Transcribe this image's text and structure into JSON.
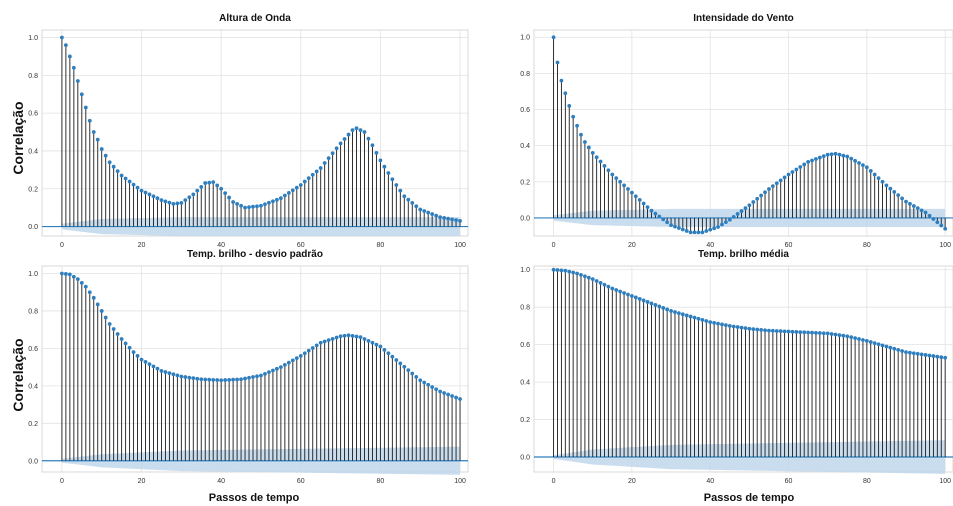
{
  "figure": {
    "ylabel_left": "Correlação",
    "xlabel_bottom": "Passos de tempo"
  },
  "style": {
    "stem_color": "#1a1a1a",
    "marker_color": "#2f7fbf",
    "zero_line_color": "#2f7fbf",
    "band_color": "#bfd7ec",
    "grid_color": "#e2e2e2",
    "frame_color": "#cfcfcf"
  },
  "chart_data": [
    {
      "type": "stem",
      "title": "Altura de Onda",
      "xlim": [
        -5,
        102
      ],
      "ylim": [
        -0.05,
        1.04
      ],
      "xticks": [
        0,
        20,
        40,
        60,
        80,
        100
      ],
      "yticks": [
        0.0,
        0.2,
        0.4,
        0.6,
        0.8,
        1.0
      ],
      "xtick_labels": [
        "0",
        "20",
        "40",
        "60",
        "80",
        "100"
      ],
      "ytick_labels": [
        "0.0",
        "0.2",
        "0.4",
        "0.6",
        "0.8",
        "1.0"
      ],
      "lags": "0-100",
      "anchors": [
        [
          0,
          1.0
        ],
        [
          1,
          0.96
        ],
        [
          2,
          0.9
        ],
        [
          3,
          0.84
        ],
        [
          4,
          0.77
        ],
        [
          5,
          0.7
        ],
        [
          6,
          0.63
        ],
        [
          7,
          0.56
        ],
        [
          8,
          0.5
        ],
        [
          9,
          0.46
        ],
        [
          10,
          0.41
        ],
        [
          12,
          0.34
        ],
        [
          15,
          0.27
        ],
        [
          20,
          0.19
        ],
        [
          25,
          0.14
        ],
        [
          28,
          0.12
        ],
        [
          30,
          0.125
        ],
        [
          33,
          0.17
        ],
        [
          36,
          0.23
        ],
        [
          38,
          0.235
        ],
        [
          40,
          0.2
        ],
        [
          43,
          0.13
        ],
        [
          46,
          0.1
        ],
        [
          50,
          0.11
        ],
        [
          55,
          0.15
        ],
        [
          60,
          0.22
        ],
        [
          65,
          0.31
        ],
        [
          70,
          0.44
        ],
        [
          73,
          0.51
        ],
        [
          74,
          0.52
        ],
        [
          76,
          0.5
        ],
        [
          78,
          0.43
        ],
        [
          80,
          0.35
        ],
        [
          83,
          0.25
        ],
        [
          86,
          0.16
        ],
        [
          90,
          0.09
        ],
        [
          95,
          0.05
        ],
        [
          100,
          0.03
        ]
      ],
      "confidence_band_upper_at": [
        [
          0,
          0.015
        ],
        [
          10,
          0.04
        ],
        [
          30,
          0.05
        ],
        [
          100,
          0.05
        ]
      ]
    },
    {
      "type": "stem",
      "title": "Intensidade do Vento",
      "xlim": [
        -5,
        102
      ],
      "ylim": [
        -0.1,
        1.04
      ],
      "xticks": [
        0,
        20,
        40,
        60,
        80,
        100
      ],
      "yticks": [
        0.0,
        0.2,
        0.4,
        0.6,
        0.8,
        1.0
      ],
      "xtick_labels": [
        "0",
        "20",
        "40",
        "60",
        "80",
        "100"
      ],
      "ytick_labels": [
        "0.0",
        "0.2",
        "0.4",
        "0.6",
        "0.8",
        "1.0"
      ],
      "lags": "0-100",
      "anchors": [
        [
          0,
          1.0
        ],
        [
          1,
          0.86
        ],
        [
          2,
          0.76
        ],
        [
          3,
          0.69
        ],
        [
          4,
          0.62
        ],
        [
          5,
          0.56
        ],
        [
          6,
          0.51
        ],
        [
          7,
          0.46
        ],
        [
          8,
          0.42
        ],
        [
          10,
          0.36
        ],
        [
          15,
          0.24
        ],
        [
          20,
          0.14
        ],
        [
          25,
          0.04
        ],
        [
          30,
          -0.04
        ],
        [
          35,
          -0.08
        ],
        [
          38,
          -0.08
        ],
        [
          42,
          -0.05
        ],
        [
          45,
          -0.01
        ],
        [
          50,
          0.07
        ],
        [
          55,
          0.16
        ],
        [
          60,
          0.24
        ],
        [
          65,
          0.31
        ],
        [
          70,
          0.35
        ],
        [
          72,
          0.355
        ],
        [
          75,
          0.34
        ],
        [
          80,
          0.28
        ],
        [
          85,
          0.18
        ],
        [
          90,
          0.09
        ],
        [
          95,
          0.03
        ],
        [
          100,
          -0.06
        ]
      ],
      "confidence_band_upper_at": [
        [
          0,
          0.015
        ],
        [
          10,
          0.04
        ],
        [
          30,
          0.05
        ],
        [
          100,
          0.05
        ]
      ]
    },
    {
      "type": "stem",
      "title": "Temp. brilho - desvio padrão",
      "xlim": [
        -5,
        102
      ],
      "ylim": [
        -0.06,
        1.04
      ],
      "xticks": [
        0,
        20,
        40,
        60,
        80,
        100
      ],
      "yticks": [
        0.0,
        0.2,
        0.4,
        0.6,
        0.8,
        1.0
      ],
      "xtick_labels": [
        "0",
        "20",
        "40",
        "60",
        "80",
        "100"
      ],
      "ytick_labels": [
        "0.0",
        "0.2",
        "0.4",
        "0.6",
        "0.8",
        "1.0"
      ],
      "lags": "0-100",
      "anchors": [
        [
          0,
          1.0
        ],
        [
          2,
          0.995
        ],
        [
          4,
          0.97
        ],
        [
          6,
          0.93
        ],
        [
          8,
          0.87
        ],
        [
          10,
          0.8
        ],
        [
          12,
          0.73
        ],
        [
          15,
          0.65
        ],
        [
          18,
          0.58
        ],
        [
          20,
          0.54
        ],
        [
          25,
          0.48
        ],
        [
          30,
          0.45
        ],
        [
          35,
          0.435
        ],
        [
          40,
          0.43
        ],
        [
          45,
          0.435
        ],
        [
          50,
          0.455
        ],
        [
          55,
          0.5
        ],
        [
          60,
          0.56
        ],
        [
          65,
          0.63
        ],
        [
          70,
          0.665
        ],
        [
          72,
          0.67
        ],
        [
          75,
          0.66
        ],
        [
          80,
          0.61
        ],
        [
          85,
          0.52
        ],
        [
          90,
          0.43
        ],
        [
          95,
          0.37
        ],
        [
          100,
          0.33
        ]
      ],
      "confidence_band_upper_at": [
        [
          0,
          0.01
        ],
        [
          10,
          0.035
        ],
        [
          30,
          0.055
        ],
        [
          100,
          0.075
        ]
      ]
    },
    {
      "type": "stem",
      "title": "Temp. brilho média",
      "xlim": [
        -5,
        102
      ],
      "ylim": [
        -0.08,
        1.02
      ],
      "xticks": [
        0,
        20,
        40,
        60,
        80,
        100
      ],
      "yticks": [
        0.0,
        0.2,
        0.4,
        0.6,
        0.8,
        1.0
      ],
      "xtick_labels": [
        "0",
        "20",
        "40",
        "60",
        "80",
        "100"
      ],
      "ytick_labels": [
        "0.0",
        "0.2",
        "0.4",
        "0.6",
        "0.8",
        "1.0"
      ],
      "lags": "0-100",
      "anchors": [
        [
          0,
          1.0
        ],
        [
          3,
          0.995
        ],
        [
          6,
          0.98
        ],
        [
          10,
          0.95
        ],
        [
          15,
          0.9
        ],
        [
          20,
          0.86
        ],
        [
          25,
          0.82
        ],
        [
          30,
          0.78
        ],
        [
          35,
          0.75
        ],
        [
          40,
          0.72
        ],
        [
          45,
          0.7
        ],
        [
          50,
          0.685
        ],
        [
          55,
          0.675
        ],
        [
          60,
          0.67
        ],
        [
          65,
          0.665
        ],
        [
          70,
          0.66
        ],
        [
          75,
          0.645
        ],
        [
          80,
          0.62
        ],
        [
          85,
          0.59
        ],
        [
          90,
          0.56
        ],
        [
          95,
          0.545
        ],
        [
          100,
          0.53
        ]
      ],
      "confidence_band_upper_at": [
        [
          0,
          0.01
        ],
        [
          10,
          0.04
        ],
        [
          30,
          0.065
        ],
        [
          100,
          0.09
        ]
      ]
    }
  ]
}
